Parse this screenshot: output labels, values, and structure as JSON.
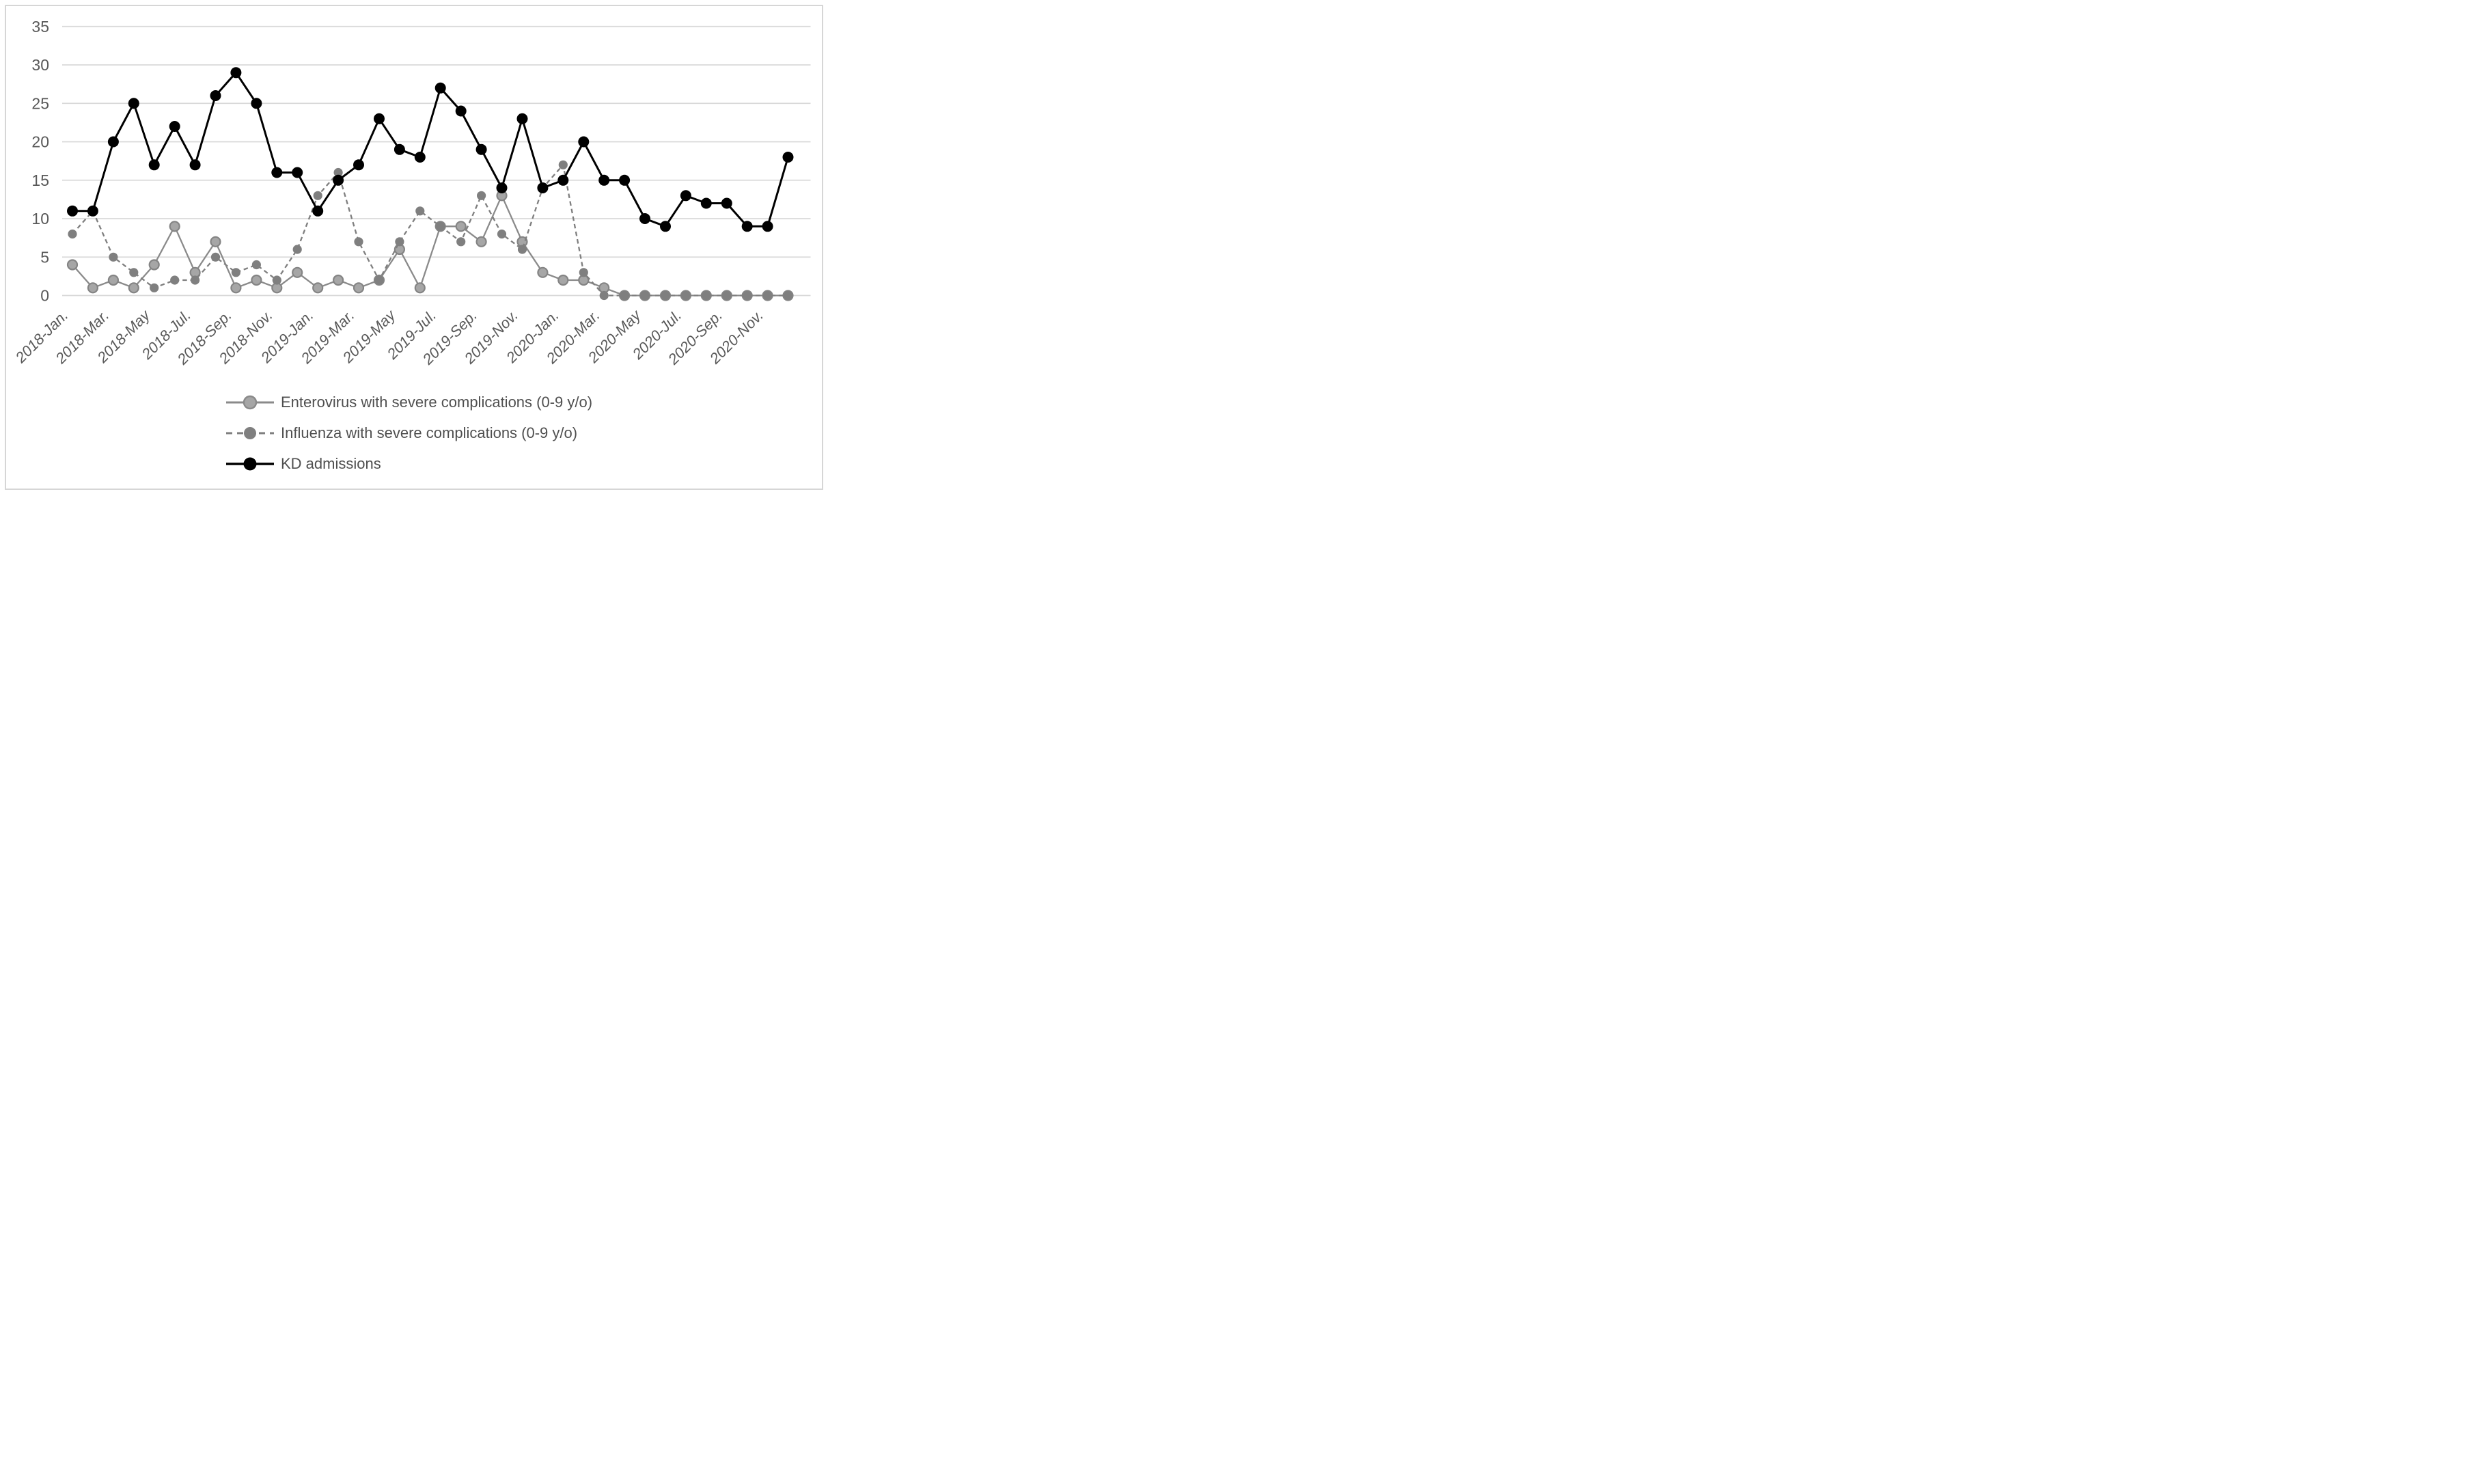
{
  "figure": {
    "background_color": "#ffffff",
    "border_color": "#d6d6d6",
    "tick_label_color": "#595959",
    "gridline_color": "#d9d9d9"
  },
  "chart_data": {
    "type": "line",
    "title": "",
    "xlabel": "",
    "ylabel": "",
    "ylim": [
      0,
      35
    ],
    "yticks": [
      0,
      5,
      10,
      15,
      20,
      25,
      30,
      35
    ],
    "grid": "horizontal",
    "legend_position": "bottom-left",
    "x_tick_labels": [
      "2018-Jan.",
      "2018-Mar.",
      "2018-May",
      "2018-Jul.",
      "2018-Sep.",
      "2018-Nov.",
      "2019-Jan.",
      "2019-Mar.",
      "2019-May",
      "2019-Jul.",
      "2019-Sep.",
      "2019-Nov.",
      "2020-Jan.",
      "2020-Mar.",
      "2020-May",
      "2020-Jul.",
      "2020-Sep.",
      "2020-Nov."
    ],
    "x_tick_positions": [
      0,
      2,
      4,
      6,
      8,
      10,
      12,
      14,
      16,
      18,
      20,
      22,
      24,
      26,
      28,
      30,
      32,
      34
    ],
    "months": [
      "2018-Jan.",
      "2018-Feb.",
      "2018-Mar.",
      "2018-Apr.",
      "2018-May",
      "2018-Jun.",
      "2018-Jul.",
      "2018-Aug.",
      "2018-Sep.",
      "2018-Oct.",
      "2018-Nov.",
      "2018-Dec.",
      "2019-Jan.",
      "2019-Feb.",
      "2019-Mar.",
      "2019-Apr.",
      "2019-May",
      "2019-Jun.",
      "2019-Jul.",
      "2019-Aug.",
      "2019-Sep.",
      "2019-Oct.",
      "2019-Nov.",
      "2019-Dec.",
      "2020-Jan.",
      "2020-Feb.",
      "2020-Mar.",
      "2020-Apr.",
      "2020-May",
      "2020-Jun.",
      "2020-Jul.",
      "2020-Aug.",
      "2020-Sep.",
      "2020-Oct.",
      "2020-Nov.",
      "2020-Dec."
    ],
    "series": [
      {
        "id": "enterovirus",
        "name": "Enterovirus with severe complications (0-9 y/o)",
        "line_style": "solid",
        "line_color": "#8a8a8a",
        "marker": "circle",
        "marker_fill": "#a6a6a6",
        "marker_edge": "#848484",
        "values": [
          4,
          1,
          2,
          1,
          4,
          9,
          3,
          7,
          1,
          2,
          1,
          3,
          1,
          2,
          1,
          2,
          6,
          1,
          9,
          9,
          7,
          13,
          7,
          3,
          2,
          2,
          1,
          0,
          0,
          0,
          0,
          0,
          0,
          0,
          0,
          0
        ]
      },
      {
        "id": "influenza",
        "name": "Influenza with severe complications (0-9 y/o)",
        "line_style": "dashed",
        "line_color": "#7f7f7f",
        "marker": "circle",
        "marker_fill": "#7f7f7f",
        "marker_edge": "#7f7f7f",
        "values": [
          8,
          11,
          5,
          3,
          1,
          2,
          2,
          5,
          3,
          4,
          2,
          6,
          13,
          16,
          7,
          2,
          7,
          11,
          9,
          7,
          13,
          8,
          6,
          14,
          17,
          3,
          0,
          0,
          0,
          0,
          0,
          0,
          0,
          0,
          0,
          0
        ]
      },
      {
        "id": "kd-admissions",
        "name": "KD admissions",
        "line_style": "solid",
        "line_color": "#000000",
        "marker": "circle",
        "marker_fill": "#000000",
        "marker_edge": "#000000",
        "values": [
          11,
          11,
          20,
          25,
          17,
          22,
          17,
          26,
          29,
          25,
          16,
          16,
          11,
          15,
          17,
          23,
          19,
          18,
          27,
          24,
          19,
          14,
          23,
          14,
          15,
          20,
          15,
          15,
          10,
          9,
          13,
          12,
          12,
          9,
          9,
          18
        ]
      }
    ]
  }
}
